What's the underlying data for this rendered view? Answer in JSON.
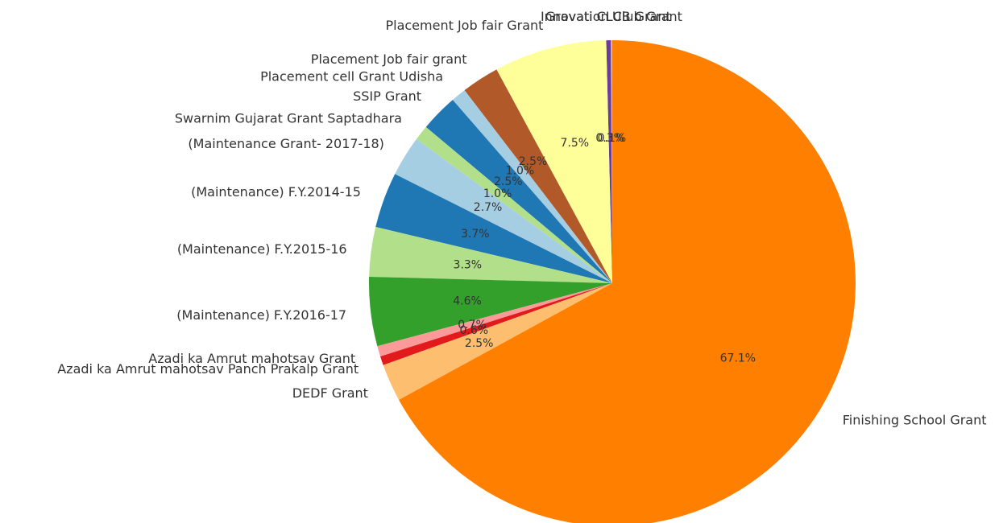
{
  "chart_data": {
    "type": "pie",
    "title": "",
    "start_angle_deg": 90,
    "direction": "counterclockwise",
    "slices": [
      {
        "label": "Innovation Club Grant",
        "pct_label": "0.1%",
        "value": 0.1,
        "color": "#cab2d6"
      },
      {
        "label": "Gravati CLUB Grant",
        "pct_label": "0.3%",
        "value": 0.3,
        "color": "#6a3d9a"
      },
      {
        "label": "Placement Job fair Grant",
        "pct_label": "7.5%",
        "value": 7.5,
        "color": "#ffff99"
      },
      {
        "label": "Placement Job fair grant",
        "pct_label": "2.5%",
        "value": 2.5,
        "color": "#b15928"
      },
      {
        "label": "Placement cell Grant Udisha",
        "pct_label": "1.0%",
        "value": 1.0,
        "color": "#a6cee3"
      },
      {
        "label": "SSIP Grant",
        "pct_label": "2.5%",
        "value": 2.5,
        "color": "#1f78b4"
      },
      {
        "label": "Swarnim Gujarat Grant Saptadhara",
        "pct_label": "1.0%",
        "value": 1.0,
        "color": "#b2df8a"
      },
      {
        "label": "(Maintenance Grant- 2017-18)",
        "pct_label": "2.7%",
        "value": 2.7,
        "color": "#a6cee3"
      },
      {
        "label": "(Maintenance) F.Y.2014-15",
        "pct_label": "3.7%",
        "value": 3.7,
        "color": "#1f78b4"
      },
      {
        "label": "(Maintenance) F.Y.2015-16",
        "pct_label": "3.3%",
        "value": 3.3,
        "color": "#b2df8a"
      },
      {
        "label": "(Maintenance) F.Y.2016-17",
        "pct_label": "4.6%",
        "value": 4.6,
        "color": "#33a02c"
      },
      {
        "label": "Azadi ka Amrut mahotsav Grant",
        "pct_label": "0.7%",
        "value": 0.7,
        "color": "#fb9a99"
      },
      {
        "label": "Azadi ka Amrut mahotsav Panch Prakalp Grant",
        "pct_label": "0.6%",
        "value": 0.6,
        "color": "#e31a1c"
      },
      {
        "label": "DEDF Grant",
        "pct_label": "2.5%",
        "value": 2.5,
        "color": "#fdbf6f"
      },
      {
        "label": "Finishing School Grant",
        "pct_label": "67.1%",
        "value": 67.1,
        "color": "#ff7f00"
      }
    ]
  }
}
